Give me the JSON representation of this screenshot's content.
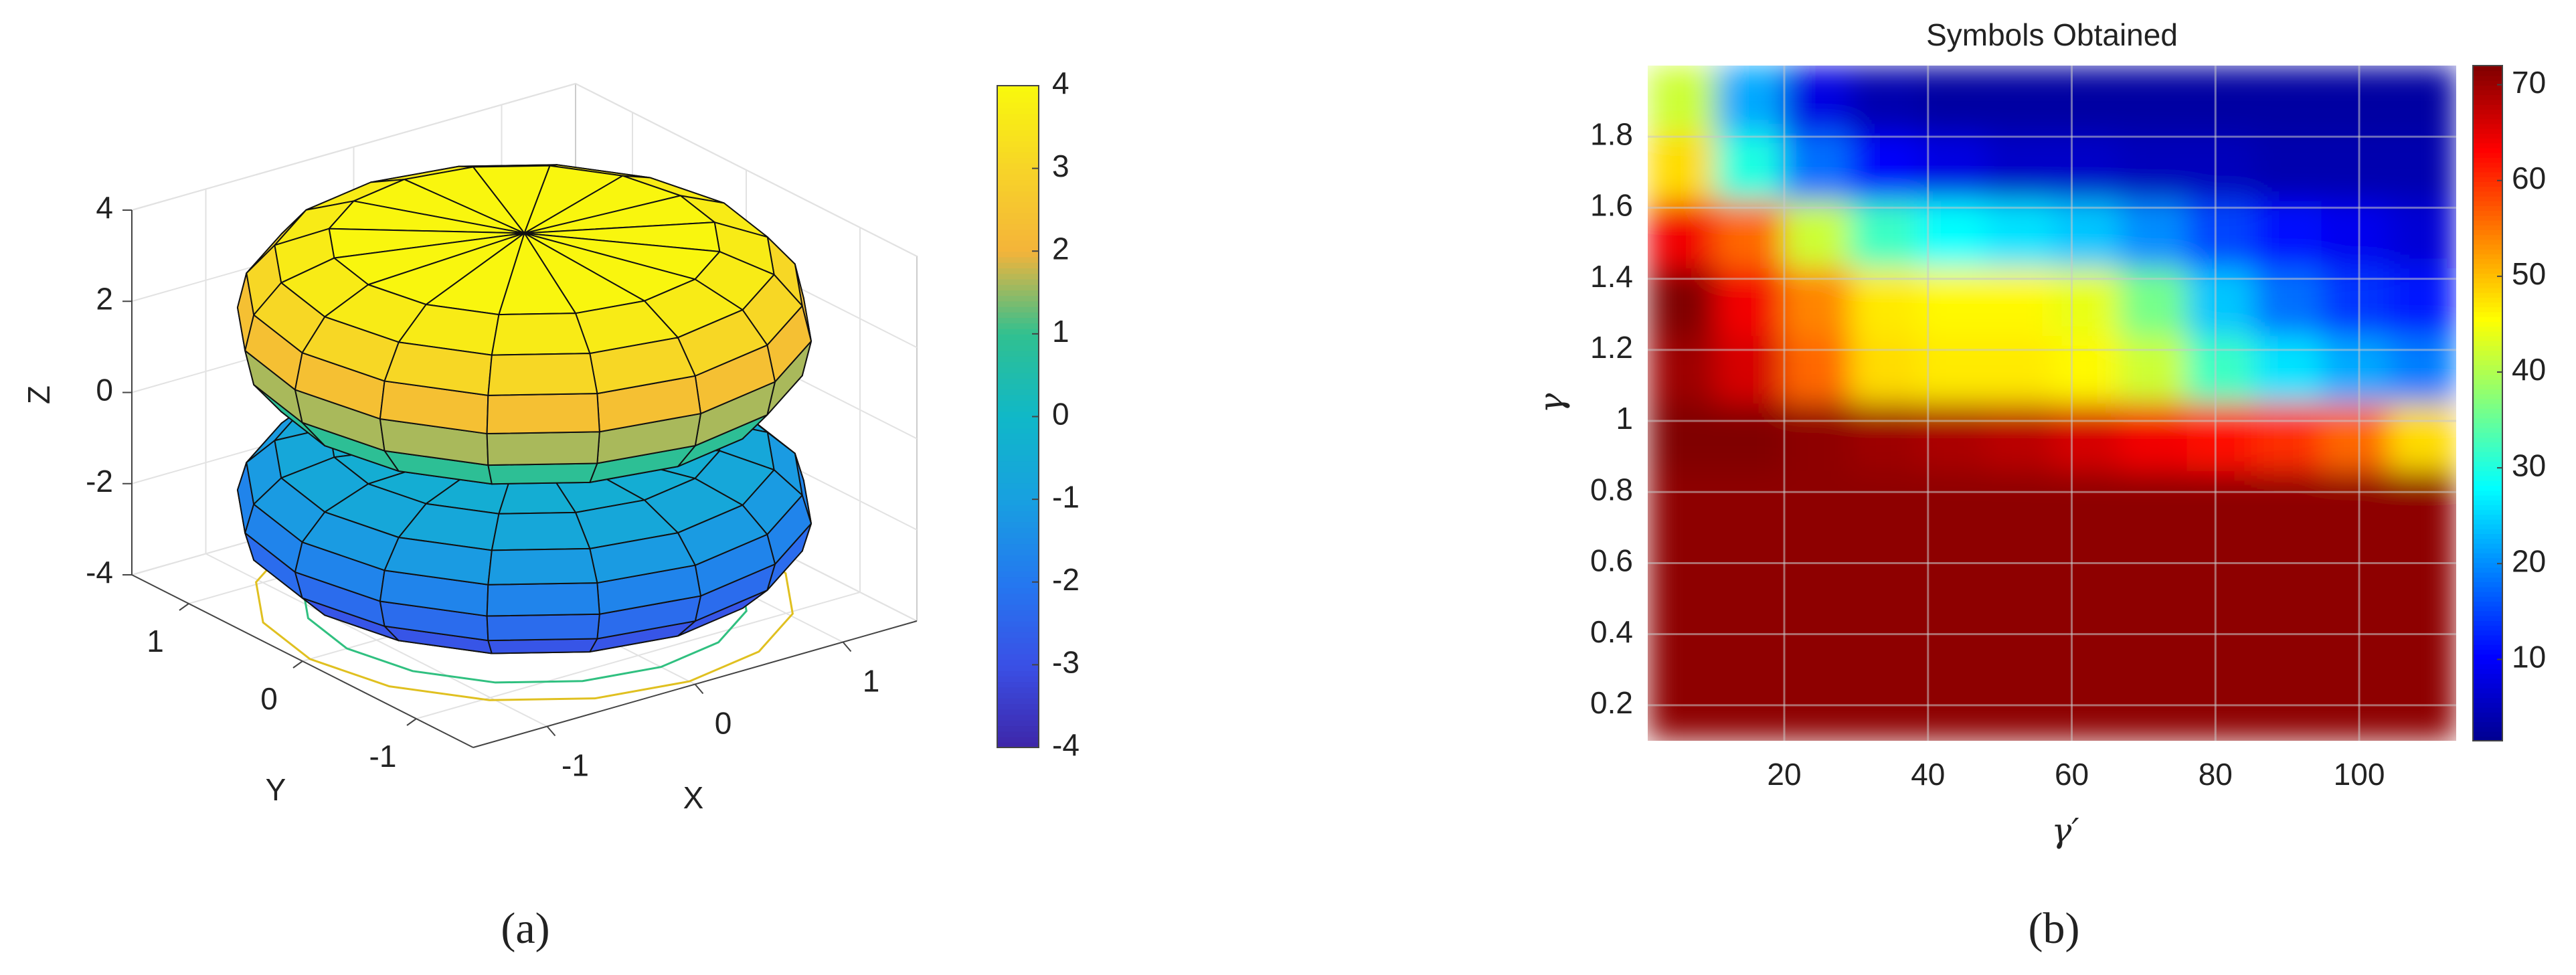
{
  "chart_data": [
    {
      "type": "surface3d",
      "caption": "(a)",
      "xlabel": "X",
      "ylabel": "Y",
      "zlabel": "Z",
      "xlim": [
        -1.5,
        1.5
      ],
      "ylim": [
        -1.5,
        1.5
      ],
      "zlim": [
        -4,
        4
      ],
      "xticks": [
        -1,
        0,
        1
      ],
      "yticks": [
        -1,
        0,
        1
      ],
      "zticks": [
        -4,
        -2,
        0,
        2,
        4
      ],
      "grid": true,
      "surfaces": [
        {
          "z_center": -2,
          "radius": 1.55,
          "half_height": 1.6
        },
        {
          "z_center": 2,
          "radius": 1.55,
          "half_height": 2
        }
      ],
      "contours": [
        {
          "z": -4,
          "radius": 1.45,
          "color": "#e0c020"
        },
        {
          "z": -4,
          "radius": 1.2,
          "color": "#30c080"
        }
      ],
      "clim": [
        -4,
        4
      ],
      "colorbar_ticks": [
        -4,
        -3,
        -2,
        -1,
        0,
        1,
        2,
        3,
        4
      ],
      "colormap": [
        "#3e26a8",
        "#3a50e6",
        "#2478f0",
        "#18a0e0",
        "#10b8c8",
        "#30c090",
        "#f4b43a",
        "#f7d428",
        "#f9f90c"
      ]
    },
    {
      "type": "heatmap",
      "title": "Symbols Obtained",
      "caption": "(b)",
      "xlabel": "γ′",
      "ylabel": "γ",
      "xlim": [
        1,
        113.5
      ],
      "ylim": [
        0.1,
        2.0
      ],
      "xticks": [
        20,
        40,
        60,
        80,
        100
      ],
      "yticks": [
        0.2,
        0.4,
        0.6,
        0.8,
        1,
        1.2,
        1.4,
        1.6,
        1.8
      ],
      "grid": true,
      "x_edges": [
        1,
        10.375,
        19.75,
        29.125,
        38.5,
        47.875,
        57.25,
        66.625,
        76,
        85.375,
        94.75,
        104.125,
        113.5
      ],
      "y_edges": [
        0.1,
        0.29,
        0.48,
        0.67,
        0.86,
        1.05,
        1.24,
        1.43,
        1.62,
        1.81,
        2.0
      ],
      "values": [
        [
          71,
          71,
          71,
          71,
          71,
          71,
          71,
          71,
          71,
          71,
          71,
          71
        ],
        [
          71,
          71,
          71,
          71,
          71,
          71,
          71,
          71,
          71,
          71,
          71,
          71
        ],
        [
          71,
          71,
          71,
          71,
          71,
          71,
          71,
          71,
          71,
          71,
          71,
          71
        ],
        [
          71,
          71,
          71,
          71,
          71,
          71,
          71,
          71,
          71,
          71,
          71,
          71
        ],
        [
          72,
          72,
          71,
          70,
          69,
          68,
          66,
          64,
          62,
          60,
          56,
          48
        ],
        [
          70,
          66,
          56,
          48,
          47,
          47,
          46,
          42,
          32,
          26,
          22,
          19
        ],
        [
          72,
          64,
          54,
          47,
          46,
          46,
          44,
          36,
          24,
          18,
          14,
          12
        ],
        [
          64,
          56,
          42,
          32,
          28,
          26,
          24,
          20,
          15,
          11,
          9,
          7
        ],
        [
          48,
          30,
          18,
          10,
          8,
          6,
          6,
          5,
          5,
          4,
          4,
          4
        ],
        [
          42,
          22,
          8,
          4,
          3,
          3,
          3,
          3,
          3,
          3,
          3,
          3
        ]
      ],
      "clim": [
        1.5,
        72
      ],
      "colorbar_ticks": [
        10,
        20,
        30,
        40,
        50,
        60,
        70
      ],
      "colormap": [
        "#00008f",
        "#0000ff",
        "#0080ff",
        "#00ffff",
        "#80ff80",
        "#ffff00",
        "#ff8000",
        "#ff0000",
        "#800000"
      ]
    }
  ]
}
